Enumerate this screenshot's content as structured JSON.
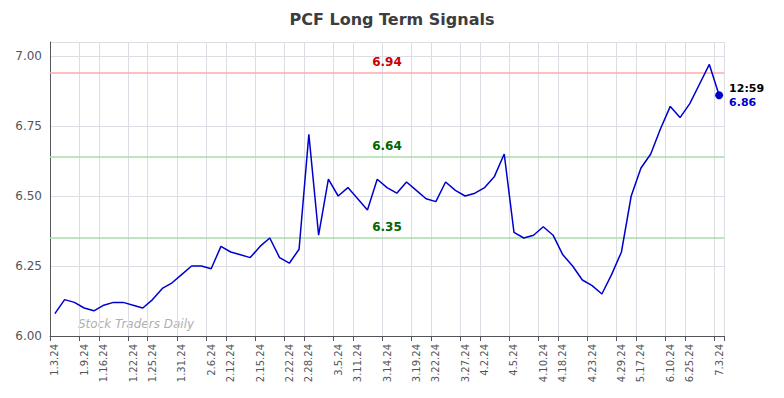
{
  "chart_data": {
    "type": "line",
    "title": "PCF Long Term Signals",
    "categories": [
      "1.3.24",
      null,
      null,
      "1.9.24",
      null,
      "1.16.24",
      null,
      null,
      "1.22.24",
      null,
      "1.25.24",
      null,
      null,
      "1.31.24",
      null,
      null,
      "2.6.24",
      null,
      "2.12.24",
      null,
      null,
      "2.15.24",
      null,
      null,
      "2.22.24",
      null,
      "2.28.24",
      null,
      null,
      "3.5.24",
      null,
      "3.11.24",
      null,
      null,
      "3.14.24",
      null,
      null,
      "3.19.24",
      null,
      "3.22.24",
      null,
      null,
      "3.27.24",
      null,
      "4.2.24",
      null,
      null,
      "4.5.24",
      null,
      null,
      "4.10.24",
      null,
      "4.18.24",
      null,
      null,
      "4.23.24",
      null,
      null,
      "4.29.24",
      null,
      "5.17.24",
      null,
      null,
      "6.10.24",
      null,
      "6.25.24",
      null,
      null,
      "7.3.24"
    ],
    "values": [
      6.08,
      6.13,
      6.12,
      6.1,
      6.09,
      6.11,
      6.12,
      6.12,
      6.11,
      6.1,
      6.13,
      6.17,
      6.19,
      6.22,
      6.25,
      6.25,
      6.24,
      6.32,
      6.3,
      6.29,
      6.28,
      6.32,
      6.35,
      6.28,
      6.26,
      6.31,
      6.72,
      6.36,
      6.56,
      6.5,
      6.53,
      6.49,
      6.45,
      6.56,
      6.53,
      6.51,
      6.55,
      6.52,
      6.49,
      6.48,
      6.55,
      6.52,
      6.5,
      6.51,
      6.53,
      6.57,
      6.65,
      6.37,
      6.35,
      6.36,
      6.39,
      6.36,
      6.29,
      6.25,
      6.2,
      6.18,
      6.15,
      6.22,
      6.3,
      6.5,
      6.6,
      6.65,
      6.74,
      6.82,
      6.78,
      6.83,
      6.9,
      6.97,
      6.86
    ],
    "color": "#0000cc",
    "ylim": [
      6.0,
      7.05
    ],
    "yticks": [
      {
        "value": 6.0,
        "label": "6.00"
      },
      6.25,
      {
        "value": 6.5,
        "label": "6.50"
      },
      6.75,
      {
        "value": 7.0,
        "label": "7.00"
      }
    ],
    "grid": true,
    "hlines": [
      {
        "value": 6.94,
        "color": "#ffaaaa",
        "label_color": "#cc0000"
      },
      {
        "value": 6.64,
        "color": "#aaddaa",
        "label_color": "#006600"
      },
      {
        "value": 6.35,
        "color": "#aaddaa",
        "label_color": "#006600"
      }
    ],
    "annotations": [
      {
        "text": "12:59"
      },
      {
        "text": "6.86",
        "color": "#0000cc"
      }
    ],
    "watermark": {
      "text": "Stock Traders Daily",
      "color": "#b0b0b0"
    }
  }
}
